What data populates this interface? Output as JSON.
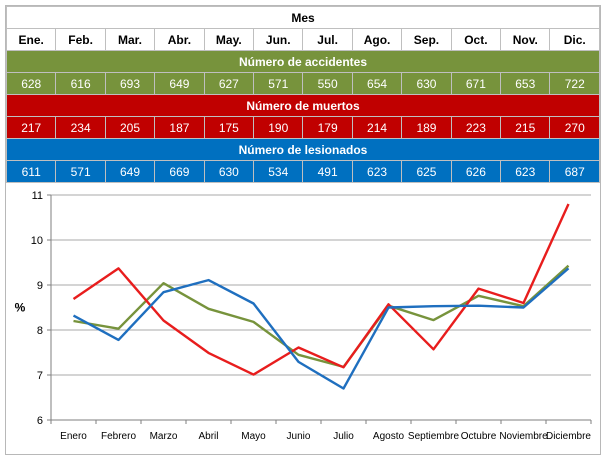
{
  "table": {
    "title": "Mes",
    "months": [
      "Ene.",
      "Feb.",
      "Mar.",
      "Abr.",
      "May.",
      "Jun.",
      "Jul.",
      "Ago.",
      "Sep.",
      "Oct.",
      "Nov.",
      "Dic."
    ],
    "sections": [
      {
        "label": "Número de accidentes",
        "color": "#77933c",
        "values": [
          628,
          616,
          693,
          649,
          627,
          571,
          550,
          654,
          630,
          671,
          653,
          722
        ]
      },
      {
        "label": "Número de muertos",
        "color": "#c00000",
        "values": [
          217,
          234,
          205,
          187,
          175,
          190,
          179,
          214,
          189,
          223,
          215,
          270
        ]
      },
      {
        "label": "Número de lesionados",
        "color": "#0070c0",
        "values": [
          611,
          571,
          649,
          669,
          630,
          534,
          491,
          623,
          625,
          626,
          623,
          687
        ]
      }
    ]
  },
  "chart_data": {
    "type": "line",
    "categories": [
      "Enero",
      "Febrero",
      "Marzo",
      "Abril",
      "Mayo",
      "Junio",
      "Julio",
      "Agosto",
      "Septiembre",
      "Octubre",
      "Noviembre",
      "Diciembre"
    ],
    "ylabel": "%",
    "ylim": [
      6,
      11
    ],
    "yticks": [
      "6",
      "7",
      "8",
      "9",
      "10",
      "11"
    ],
    "grid": "horizontal",
    "series": [
      {
        "color": "#77933c",
        "values": [
          8.2,
          8.03,
          9.04,
          8.47,
          8.18,
          7.45,
          7.18,
          8.54,
          8.22,
          8.76,
          8.53,
          9.43
        ]
      },
      {
        "color": "#e81d1d",
        "values": [
          8.69,
          9.37,
          8.21,
          7.49,
          7.01,
          7.61,
          7.17,
          8.57,
          7.57,
          8.92,
          8.6,
          10.8
        ]
      },
      {
        "color": "#1f6fbf",
        "values": [
          8.32,
          7.78,
          8.84,
          9.11,
          8.59,
          7.29,
          6.7,
          8.5,
          8.53,
          8.54,
          8.5,
          9.37
        ]
      }
    ]
  }
}
